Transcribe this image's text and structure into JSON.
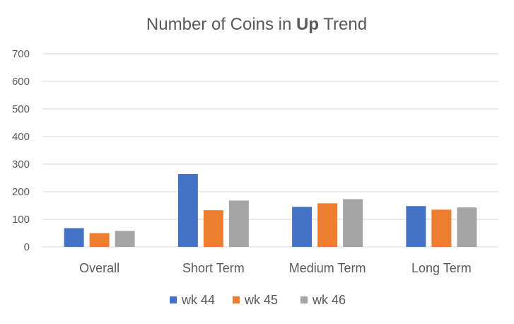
{
  "chart_data": {
    "type": "bar",
    "title": "Number of Coins in Up Trend",
    "title_parts": {
      "before": "Number of Coins in ",
      "bold": "Up",
      "after": " Trend"
    },
    "xlabel": "",
    "ylabel": "",
    "categories": [
      "Overall",
      "Short Term",
      "Medium Term",
      "Long Term"
    ],
    "series": [
      {
        "name": "wk 44",
        "color": "#4472c4",
        "values": [
          68,
          264,
          145,
          148
        ]
      },
      {
        "name": "wk 45",
        "color": "#ed7d31",
        "values": [
          50,
          133,
          158,
          135
        ]
      },
      {
        "name": "wk 46",
        "color": "#a5a5a5",
        "values": [
          58,
          168,
          173,
          143
        ]
      }
    ],
    "ylim": [
      0,
      700
    ],
    "yticks": [
      "0",
      "100",
      "200",
      "300",
      "400",
      "500",
      "600",
      "700"
    ],
    "grid": true,
    "legend_position": "bottom"
  }
}
